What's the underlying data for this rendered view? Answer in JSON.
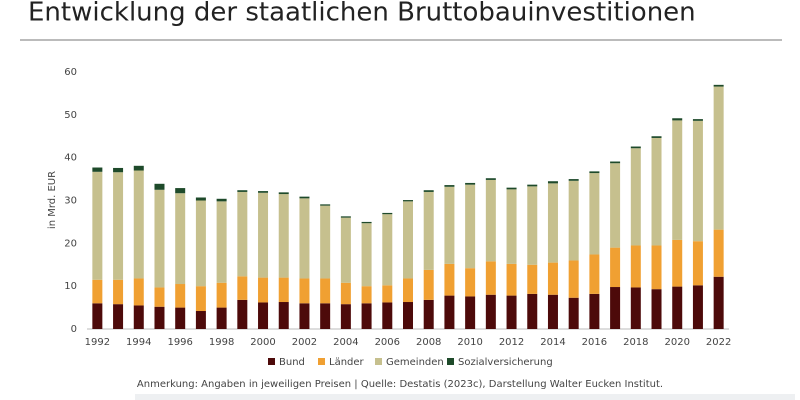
{
  "chart_data": {
    "type": "stacked_bar",
    "title": "Entwicklung der staatlichen Bruttobauinvestitionen",
    "y_label": "in Mrd. EUR",
    "note": "Anmerkung: Angaben in jeweiligen Preisen | Quelle: Destatis (2023c), Darstellung Walter Eucken Institut.",
    "categories": [
      "1992",
      null,
      "1994",
      null,
      "1996",
      null,
      "1998",
      null,
      "2000",
      null,
      "2002",
      null,
      "2004",
      null,
      "2006",
      null,
      "2008",
      null,
      "2010",
      null,
      "2012",
      null,
      "2014",
      null,
      "2016",
      null,
      "2018",
      null,
      "2020",
      null,
      "2022"
    ],
    "series": [
      {
        "name": "Bund",
        "color": "#4d0a0a",
        "values": [
          6,
          5.8,
          5.5,
          5.2,
          5,
          4.2,
          5,
          6.8,
          6.2,
          6.3,
          6,
          6,
          5.8,
          6,
          6.2,
          6.3,
          6.8,
          7.8,
          7.6,
          8,
          7.8,
          8.2,
          8,
          7.3,
          8.2,
          9.8,
          9.7,
          9.3,
          9.9,
          10.2,
          12.2
        ]
      },
      {
        "name": "Länder",
        "color": "#f0a032",
        "values": [
          5.5,
          5.7,
          6.3,
          4.5,
          5.5,
          5.8,
          5.8,
          5.5,
          5.8,
          5.7,
          5.8,
          5.8,
          5,
          4,
          4,
          5.5,
          7,
          7.4,
          6.6,
          7.8,
          7.4,
          6.8,
          7.5,
          8.7,
          9.2,
          9.2,
          9.8,
          10.2,
          10.9,
          10.3,
          11
        ]
      },
      {
        "name": "Gemeinden",
        "color": "#c6c08e",
        "values": [
          25.2,
          25.1,
          25.2,
          22.8,
          21.2,
          20,
          19,
          19.7,
          19.8,
          19.5,
          18.7,
          17,
          15.2,
          14.7,
          16.6,
          18,
          18.2,
          18,
          19.5,
          19,
          17.4,
          18.3,
          18.5,
          18.6,
          19,
          19.7,
          22.7,
          25.1,
          27.9,
          28.1,
          33.4
        ]
      },
      {
        "name": "Sozialversicherung",
        "color": "#1e4a2a",
        "values": [
          1,
          1,
          1.1,
          1.4,
          1.2,
          0.7,
          0.6,
          0.4,
          0.4,
          0.4,
          0.4,
          0.3,
          0.3,
          0.3,
          0.3,
          0.3,
          0.4,
          0.4,
          0.4,
          0.4,
          0.4,
          0.4,
          0.5,
          0.4,
          0.4,
          0.4,
          0.4,
          0.4,
          0.5,
          0.4,
          0.4
        ]
      }
    ],
    "ylim": [
      0,
      60
    ],
    "yticks": [
      0,
      10,
      20,
      30,
      40,
      50,
      60
    ],
    "legend": "bottom"
  }
}
